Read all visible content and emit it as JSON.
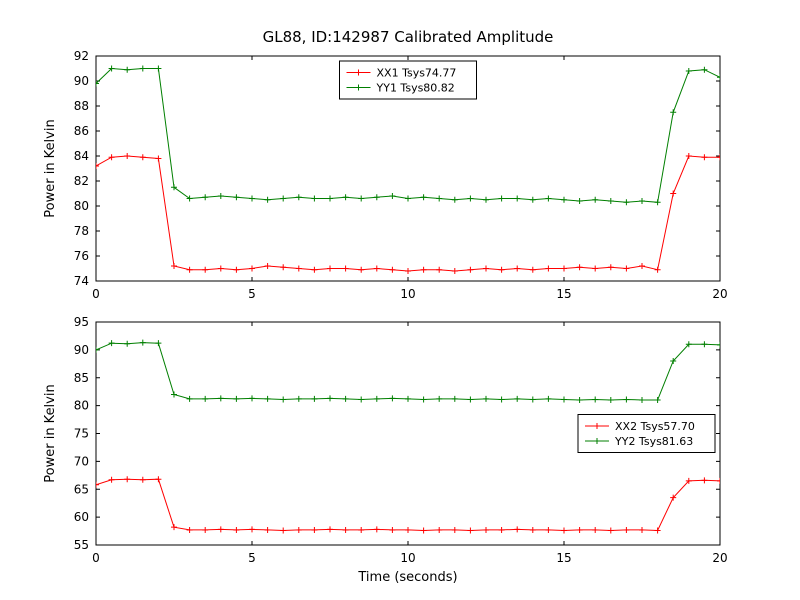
{
  "figure": {
    "background": "#ffffff",
    "frame_color": "#000000"
  },
  "chart_data": [
    {
      "type": "line",
      "title": "GL88, ID:142987 Calibrated Amplitude",
      "xlabel": "",
      "ylabel": "Power in Kelvin",
      "xlim": [
        0,
        20
      ],
      "ylim": [
        74,
        92
      ],
      "xticks": [
        0,
        5,
        10,
        15,
        20
      ],
      "yticks": [
        74,
        76,
        78,
        80,
        82,
        84,
        86,
        88,
        90,
        92
      ],
      "grid": false,
      "legend_pos": "upper-center",
      "marker": "plus",
      "x": [
        0,
        0.5,
        1,
        1.5,
        2,
        2.5,
        3,
        3.5,
        4,
        4.5,
        5,
        5.5,
        6,
        6.5,
        7,
        7.5,
        8,
        8.5,
        9,
        9.5,
        10,
        10.5,
        11,
        11.5,
        12,
        12.5,
        13,
        13.5,
        14,
        14.5,
        15,
        15.5,
        16,
        16.5,
        17,
        17.5,
        18,
        18.5,
        19,
        19.5,
        20
      ],
      "series": [
        {
          "name": "XX1 Tsys74.77",
          "color": "#ff0000",
          "values": [
            83.2,
            83.9,
            84.0,
            83.9,
            83.8,
            75.2,
            74.9,
            74.9,
            75.0,
            74.9,
            75.0,
            75.2,
            75.1,
            75.0,
            74.9,
            75.0,
            75.0,
            74.9,
            75.0,
            74.9,
            74.8,
            74.9,
            74.9,
            74.8,
            74.9,
            75.0,
            74.9,
            75.0,
            74.9,
            75.0,
            75.0,
            75.1,
            75.0,
            75.1,
            75.0,
            75.2,
            74.9,
            81.0,
            84.0,
            83.9,
            83.9
          ]
        },
        {
          "name": "YY1 Tsys80.82",
          "color": "#007f00",
          "values": [
            89.8,
            91.0,
            90.9,
            91.0,
            91.0,
            81.5,
            80.6,
            80.7,
            80.8,
            80.7,
            80.6,
            80.5,
            80.6,
            80.7,
            80.6,
            80.6,
            80.7,
            80.6,
            80.7,
            80.8,
            80.6,
            80.7,
            80.6,
            80.5,
            80.6,
            80.5,
            80.6,
            80.6,
            80.5,
            80.6,
            80.5,
            80.4,
            80.5,
            80.4,
            80.3,
            80.4,
            80.3,
            87.5,
            90.8,
            90.9,
            90.3
          ]
        }
      ]
    },
    {
      "type": "line",
      "title": "",
      "xlabel": "Time (seconds)",
      "ylabel": "Power in Kelvin",
      "xlim": [
        0,
        20
      ],
      "ylim": [
        55,
        95
      ],
      "xticks": [
        0,
        5,
        10,
        15,
        20
      ],
      "yticks": [
        55,
        60,
        65,
        70,
        75,
        80,
        85,
        90,
        95
      ],
      "grid": false,
      "legend_pos": "center-right",
      "marker": "plus",
      "x": [
        0,
        0.5,
        1,
        1.5,
        2,
        2.5,
        3,
        3.5,
        4,
        4.5,
        5,
        5.5,
        6,
        6.5,
        7,
        7.5,
        8,
        8.5,
        9,
        9.5,
        10,
        10.5,
        11,
        11.5,
        12,
        12.5,
        13,
        13.5,
        14,
        14.5,
        15,
        15.5,
        16,
        16.5,
        17,
        17.5,
        18,
        18.5,
        19,
        19.5,
        20
      ],
      "series": [
        {
          "name": "XX2 Tsys57.70",
          "color": "#ff0000",
          "values": [
            65.8,
            66.7,
            66.8,
            66.7,
            66.8,
            58.2,
            57.7,
            57.7,
            57.8,
            57.7,
            57.8,
            57.7,
            57.6,
            57.7,
            57.7,
            57.8,
            57.7,
            57.7,
            57.8,
            57.7,
            57.7,
            57.6,
            57.7,
            57.7,
            57.6,
            57.7,
            57.7,
            57.8,
            57.7,
            57.7,
            57.6,
            57.7,
            57.7,
            57.6,
            57.7,
            57.7,
            57.6,
            63.5,
            66.5,
            66.6,
            66.5
          ]
        },
        {
          "name": "YY2 Tsys81.63",
          "color": "#007f00",
          "values": [
            90.0,
            91.2,
            91.1,
            91.3,
            91.2,
            82.0,
            81.2,
            81.2,
            81.3,
            81.2,
            81.3,
            81.2,
            81.1,
            81.2,
            81.2,
            81.3,
            81.2,
            81.1,
            81.2,
            81.3,
            81.2,
            81.1,
            81.2,
            81.2,
            81.1,
            81.2,
            81.1,
            81.2,
            81.1,
            81.2,
            81.1,
            81.0,
            81.1,
            81.0,
            81.1,
            81.0,
            81.0,
            88.0,
            91.0,
            91.0,
            90.9
          ]
        }
      ]
    }
  ]
}
